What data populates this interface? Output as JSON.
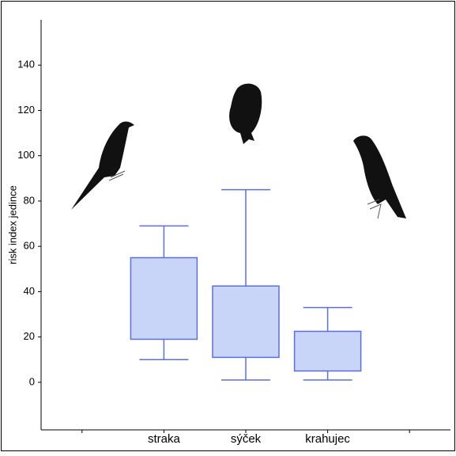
{
  "chart_data": {
    "type": "box",
    "ylabel": "risk index jedince",
    "categories": [
      null,
      "straka",
      "sýček",
      "krahujec",
      null
    ],
    "min": [
      null,
      10,
      1,
      1,
      null
    ],
    "q1": [
      null,
      19,
      11,
      5,
      null
    ],
    "q3": [
      null,
      55,
      42.5,
      22.5,
      null
    ],
    "max": [
      null,
      69,
      85,
      33,
      null
    ],
    "color": "#c8d5f8",
    "edge_color": "#5b6fd8",
    "ylim": [
      -21,
      160
    ],
    "yticks": [
      0,
      20,
      40,
      60,
      80,
      100,
      120,
      140
    ]
  }
}
